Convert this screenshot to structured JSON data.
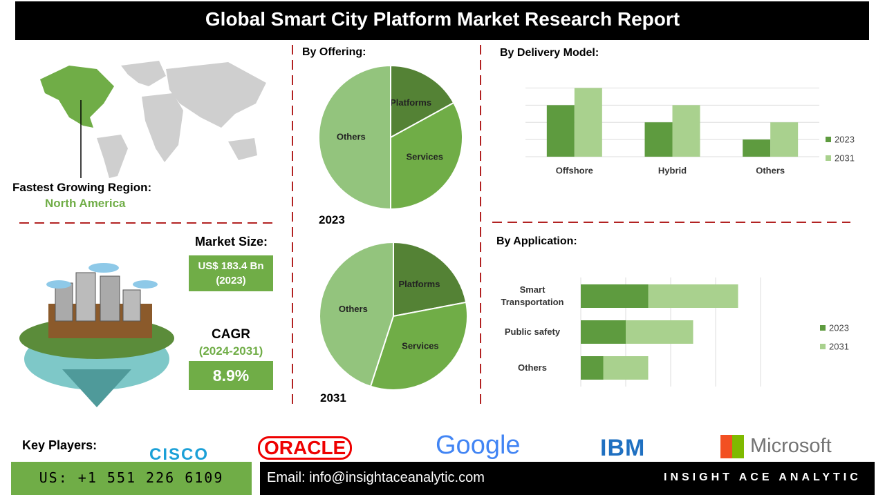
{
  "title": "Global Smart City Platform Market Research Report",
  "region": {
    "label": "Fastest Growing Region:",
    "value": "North America"
  },
  "market_size": {
    "label": "Market Size:",
    "value": "US$ 183.4 Bn",
    "year": "(2023)"
  },
  "cagr": {
    "label": "CAGR",
    "period": "(2024-2031)",
    "value": "8.9%"
  },
  "chart_data": [
    {
      "type": "pie",
      "title": "By Offering:",
      "subtitle": "2023",
      "categories": [
        "Platforms",
        "Services",
        "Others"
      ],
      "values": [
        17,
        33,
        50
      ],
      "colors": [
        "#548235",
        "#70ad47",
        "#93c47d"
      ]
    },
    {
      "type": "pie",
      "subtitle": "2031",
      "categories": [
        "Platforms",
        "Services",
        "Others"
      ],
      "values": [
        22,
        33,
        45
      ],
      "colors": [
        "#548235",
        "#70ad47",
        "#93c47d"
      ]
    },
    {
      "type": "bar",
      "title": "By Delivery Model:",
      "categories": [
        "Offshore",
        "Hybrid",
        "Others"
      ],
      "series": [
        {
          "name": "2023",
          "color": "#5e9b3f",
          "values": [
            3,
            2,
            1
          ]
        },
        {
          "name": "2031",
          "color": "#a9d18e",
          "values": [
            4,
            3,
            2
          ]
        }
      ],
      "ylim": [
        0,
        4.5
      ],
      "yticks": [
        0,
        1,
        2,
        3,
        4
      ],
      "grid": true
    },
    {
      "type": "barh_stacked",
      "title": "By Application:",
      "categories": [
        "Smart Transportation",
        "Public safety",
        "Others"
      ],
      "series": [
        {
          "name": "2023",
          "color": "#5e9b3f",
          "values": [
            1.5,
            1.0,
            0.5
          ]
        },
        {
          "name": "2031",
          "color": "#a9d18e",
          "values": [
            2.0,
            1.5,
            1.0
          ]
        }
      ],
      "xlim": [
        0,
        4
      ],
      "xticks": [
        0,
        1,
        2,
        3,
        4
      ],
      "grid": true
    }
  ],
  "key_players": {
    "label": "Key Players:",
    "companies": [
      "CISCO",
      "ORACLE",
      "Google",
      "IBM",
      "Microsoft"
    ]
  },
  "contact": {
    "phone": "US: +1 551 226 6109",
    "email": "Email: info@insightaceanalytic.com",
    "brand": "INSIGHT ACE ANALYTIC"
  }
}
